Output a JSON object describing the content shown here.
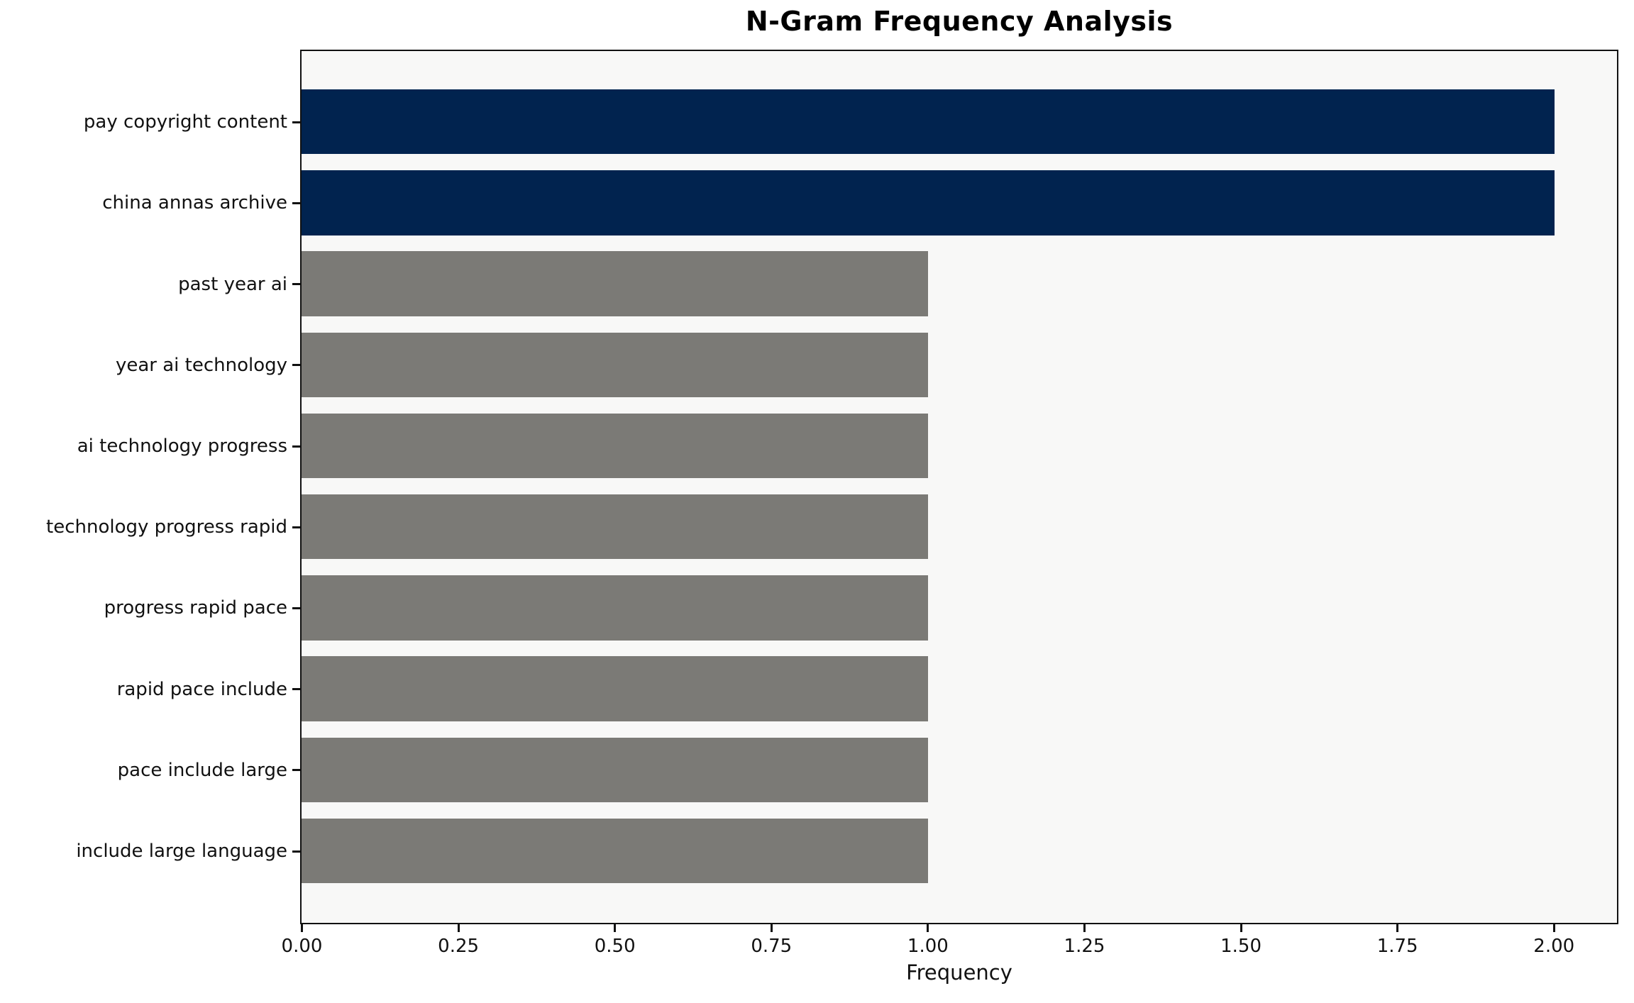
{
  "chart_data": {
    "type": "bar",
    "orientation": "horizontal",
    "title": "N-Gram Frequency Analysis",
    "xlabel": "Frequency",
    "ylabel": "",
    "categories": [
      "pay copyright content",
      "china annas archive",
      "past year ai",
      "year ai technology",
      "ai technology progress",
      "technology progress rapid",
      "progress rapid pace",
      "rapid pace include",
      "pace include large",
      "include large language"
    ],
    "values": [
      2,
      2,
      1,
      1,
      1,
      1,
      1,
      1,
      1,
      1
    ],
    "bar_colors": [
      "#01234F",
      "#01234F",
      "#7B7A76",
      "#7B7A76",
      "#7B7A76",
      "#7B7A76",
      "#7B7A76",
      "#7B7A76",
      "#7B7A76",
      "#7B7A76"
    ],
    "xlim": [
      0,
      2.1
    ],
    "xticks": [
      {
        "value": 0.0,
        "label": "0.00"
      },
      {
        "value": 0.25,
        "label": "0.25"
      },
      {
        "value": 0.5,
        "label": "0.50"
      },
      {
        "value": 0.75,
        "label": "0.75"
      },
      {
        "value": 1.0,
        "label": "1.00"
      },
      {
        "value": 1.25,
        "label": "1.25"
      },
      {
        "value": 1.5,
        "label": "1.50"
      },
      {
        "value": 1.75,
        "label": "1.75"
      },
      {
        "value": 2.0,
        "label": "2.00"
      }
    ],
    "grid": false,
    "legend": null,
    "colors": {
      "highlight_bar": "#01234F",
      "default_bar": "#7B7A76",
      "plot_background": "#F8F8F7",
      "figure_background": "#FFFFFF",
      "spine": "#111111",
      "text": "#000000"
    }
  }
}
